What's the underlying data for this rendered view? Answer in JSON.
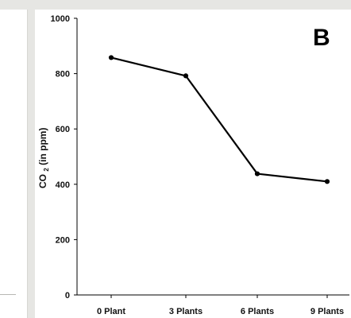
{
  "panel_label": "B",
  "chart_data": {
    "type": "line",
    "categories": [
      "0 Plant",
      "3 Plants",
      "6 Plants",
      "9 Plants"
    ],
    "values": [
      858,
      792,
      438,
      410
    ],
    "title": "",
    "xlabel": "",
    "ylabel_main": "CO",
    "ylabel_sub": "2",
    "ylabel_rest": " (in ppm)",
    "ylim": [
      0,
      1000
    ],
    "yticks": [
      "0",
      "200",
      "400",
      "600",
      "800",
      "1000"
    ],
    "grid": false,
    "line_color": "#000000"
  }
}
